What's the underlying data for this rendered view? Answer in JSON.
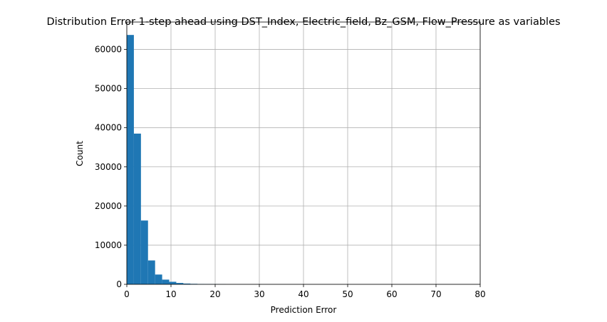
{
  "chart_data": {
    "type": "bar",
    "title": "Distribution Error 1-step ahead using DST_Index, Electric_field, Bz_GSM, Flow_Pressure as variables",
    "xlabel": "Prediction Error",
    "ylabel": "Count",
    "xlim": [
      0,
      80
    ],
    "ylim": [
      0,
      67000
    ],
    "xticks": [
      0,
      10,
      20,
      30,
      40,
      50,
      60,
      70,
      80
    ],
    "yticks": [
      0,
      10000,
      20000,
      30000,
      40000,
      50000,
      60000
    ],
    "grid": true,
    "bin_width": 1.6,
    "bins_start": [
      0,
      1.6,
      3.2,
      4.8,
      6.4,
      8.0,
      9.6,
      11.2,
      12.8,
      14.4,
      16.0,
      17.6,
      19.2,
      20.8
    ],
    "values": [
      63700,
      38500,
      16300,
      6100,
      2500,
      1200,
      650,
      350,
      200,
      130,
      90,
      70,
      50,
      30
    ],
    "color": "#1f77b4"
  }
}
